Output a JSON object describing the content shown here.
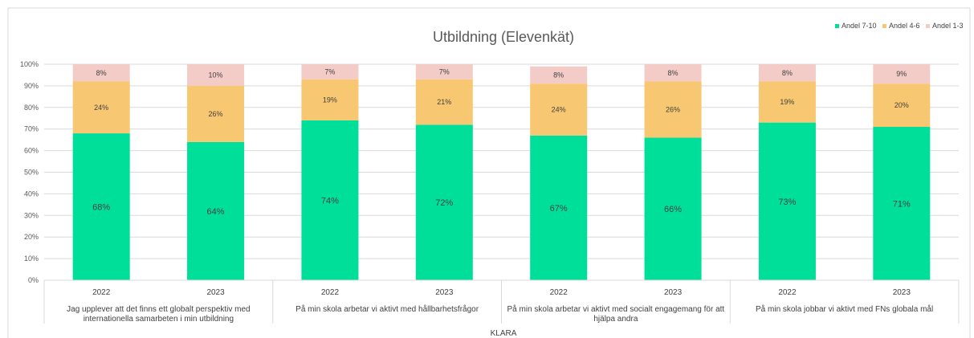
{
  "chart_data": {
    "type": "bar",
    "stacked": true,
    "percent_stacked": true,
    "title": "Utbildning (Elevenkät)",
    "outer_group_label": "KLARA",
    "groups": [
      {
        "label": "Jag upplever att det finns ett globalt perspektiv med internationella samarbeten i min utbildning",
        "lines": [
          "Jag upplever att det finns ett globalt perspektiv med",
          "internationella samarbeten i min utbildning"
        ]
      },
      {
        "label": "På min skola arbetar vi aktivt med hållbarhetsfrågor",
        "lines": [
          "På min skola arbetar vi aktivt med hållbarhetsfrågor"
        ]
      },
      {
        "label": "På min skola arbetar vi aktivt med socialt engagemang för att hjälpa andra",
        "lines": [
          "På min skola arbetar vi aktivt med socialt engagemang för att",
          "hjälpa andra"
        ]
      },
      {
        "label": "På min skola jobbar vi aktivt med FNs globala mål",
        "lines": [
          "På min skola jobbar vi aktivt med FNs globala mål"
        ]
      }
    ],
    "categories": [
      "2022",
      "2023",
      "2022",
      "2023",
      "2022",
      "2023",
      "2022",
      "2023"
    ],
    "series": [
      {
        "name": "Andel 7-10",
        "color": "#00df9a",
        "values": [
          68,
          64,
          74,
          72,
          67,
          66,
          73,
          71
        ]
      },
      {
        "name": "Andel 4-6",
        "color": "#f8c771",
        "values": [
          24,
          26,
          19,
          21,
          24,
          26,
          19,
          20
        ]
      },
      {
        "name": "Andel 1-3",
        "color": "#f4ccc7",
        "values": [
          8,
          10,
          7,
          7,
          8,
          8,
          8,
          9
        ]
      }
    ],
    "ylim": [
      0,
      100
    ],
    "yticks": [
      "0%",
      "10%",
      "20%",
      "30%",
      "40%",
      "50%",
      "60%",
      "70%",
      "80%",
      "90%",
      "100%"
    ],
    "value_suffix": "%",
    "legend_position": "top-right",
    "grid": true
  }
}
